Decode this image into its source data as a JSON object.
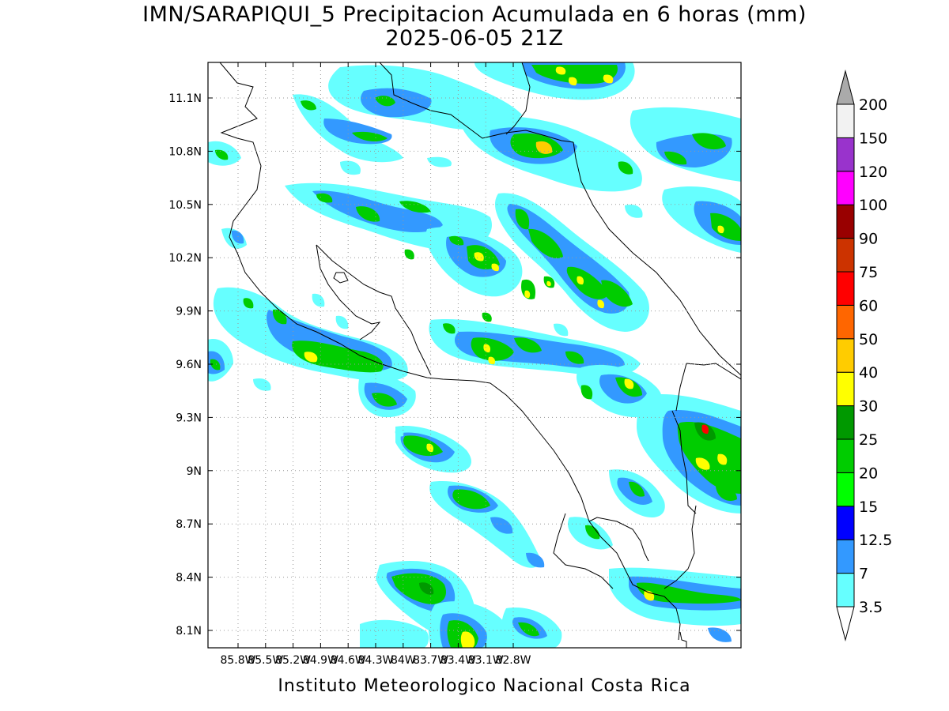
{
  "title": "IMN/SARAPIQUI_5 Precipitacion Acumulada en 6 horas (mm)",
  "subtitle": "2025-06-05 21Z",
  "footer": "Instituto Meteorologico Nacional Costa Rica",
  "map": {
    "lon_range": [
      -86.0,
      -83.0
    ],
    "lat_range": [
      8.0,
      11.3
    ],
    "x_ticks": [
      {
        "value": -85.8,
        "label": "85.8W"
      },
      {
        "value": -85.5,
        "label": "85.5W"
      },
      {
        "value": -85.2,
        "label": "85.2W"
      },
      {
        "value": -84.9,
        "label": "84.9W"
      },
      {
        "value": -84.6,
        "label": "84.6W"
      },
      {
        "value": -84.3,
        "label": "84.3W"
      },
      {
        "value": -84.0,
        "label": "84W"
      },
      {
        "value": -83.7,
        "label": "83.7W"
      },
      {
        "value": -83.4,
        "label": "83.4W"
      },
      {
        "value": -83.1,
        "label": "83.1W"
      },
      {
        "value": -82.8,
        "label": "82.8W"
      }
    ],
    "y_ticks": [
      {
        "value": 11.1,
        "label": "11.1N"
      },
      {
        "value": 10.8,
        "label": "10.8N"
      },
      {
        "value": 10.5,
        "label": "10.5N"
      },
      {
        "value": 10.2,
        "label": "10.2N"
      },
      {
        "value": 9.9,
        "label": "9.9N"
      },
      {
        "value": 9.6,
        "label": "9.6N"
      },
      {
        "value": 9.3,
        "label": "9.3N"
      },
      {
        "value": 9.0,
        "label": "9N"
      },
      {
        "value": 8.7,
        "label": "8.7N"
      },
      {
        "value": 8.4,
        "label": "8.4N"
      },
      {
        "value": 8.1,
        "label": "8.1N"
      }
    ],
    "grid": "dotted"
  },
  "colorbar": {
    "levels": [
      {
        "label": "3.5",
        "color": "#66ffff"
      },
      {
        "label": "7",
        "color": "#3399ff"
      },
      {
        "label": "12.5",
        "color": "#0000ff"
      },
      {
        "label": "15",
        "color": "#00ff00"
      },
      {
        "label": "20",
        "color": "#00cc00"
      },
      {
        "label": "25",
        "color": "#009900"
      },
      {
        "label": "30",
        "color": "#ffff00"
      },
      {
        "label": "40",
        "color": "#ffcc00"
      },
      {
        "label": "50",
        "color": "#ff6600"
      },
      {
        "label": "60",
        "color": "#ff0000"
      },
      {
        "label": "75",
        "color": "#cc3300"
      },
      {
        "label": "90",
        "color": "#990000"
      },
      {
        "label": "100",
        "color": "#ff00ff"
      },
      {
        "label": "120",
        "color": "#9933cc"
      },
      {
        "label": "150",
        "color": "#f2f2f2"
      },
      {
        "label": "200",
        "color": "#aaaaaa"
      }
    ],
    "under_color": "#ffffff",
    "over_color": "#aaaaaa"
  }
}
